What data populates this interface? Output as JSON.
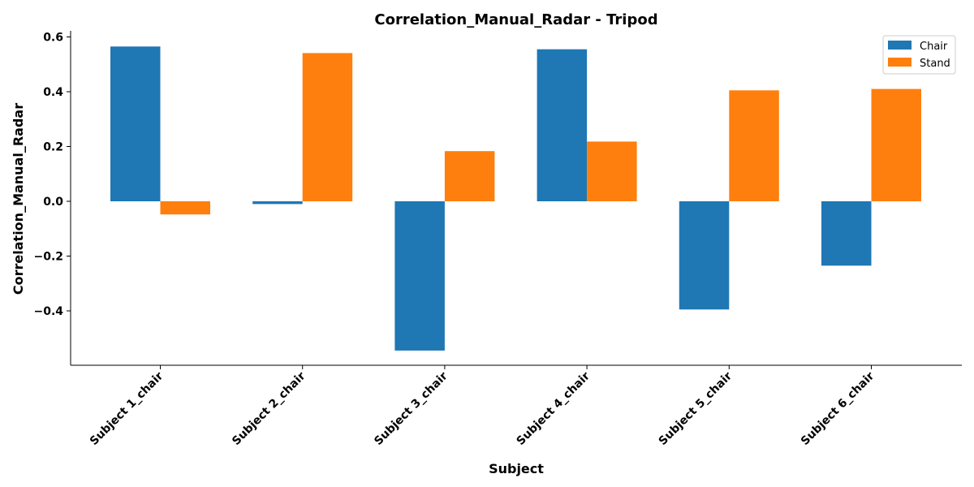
{
  "chart_data": {
    "type": "bar",
    "title": "Correlation_Manual_Radar - Tripod",
    "xlabel": "Subject",
    "ylabel": "Correlation_Manual_Radar",
    "categories": [
      "Subject 1_chair",
      "Subject 2_chair",
      "Subject 3_chair",
      "Subject 4_chair",
      "Subject 5_chair",
      "Subject 6_chair"
    ],
    "series": [
      {
        "name": "Chair",
        "color": "#1f77b4",
        "values": [
          0.565,
          -0.01,
          -0.545,
          0.555,
          -0.395,
          -0.235
        ]
      },
      {
        "name": "Stand",
        "color": "#ff7f0e",
        "values": [
          -0.048,
          0.541,
          0.183,
          0.218,
          0.405,
          0.41
        ]
      }
    ],
    "ylim": [
      -0.6,
      0.62
    ],
    "yticks": [
      0.6,
      0.4,
      0.2,
      0.0,
      -0.2,
      -0.4
    ],
    "ytick_labels": [
      "0.6",
      "0.4",
      "0.2",
      "0.0",
      "−0.2",
      "−0.4"
    ],
    "legend_position": "top-right",
    "grid": false
  }
}
